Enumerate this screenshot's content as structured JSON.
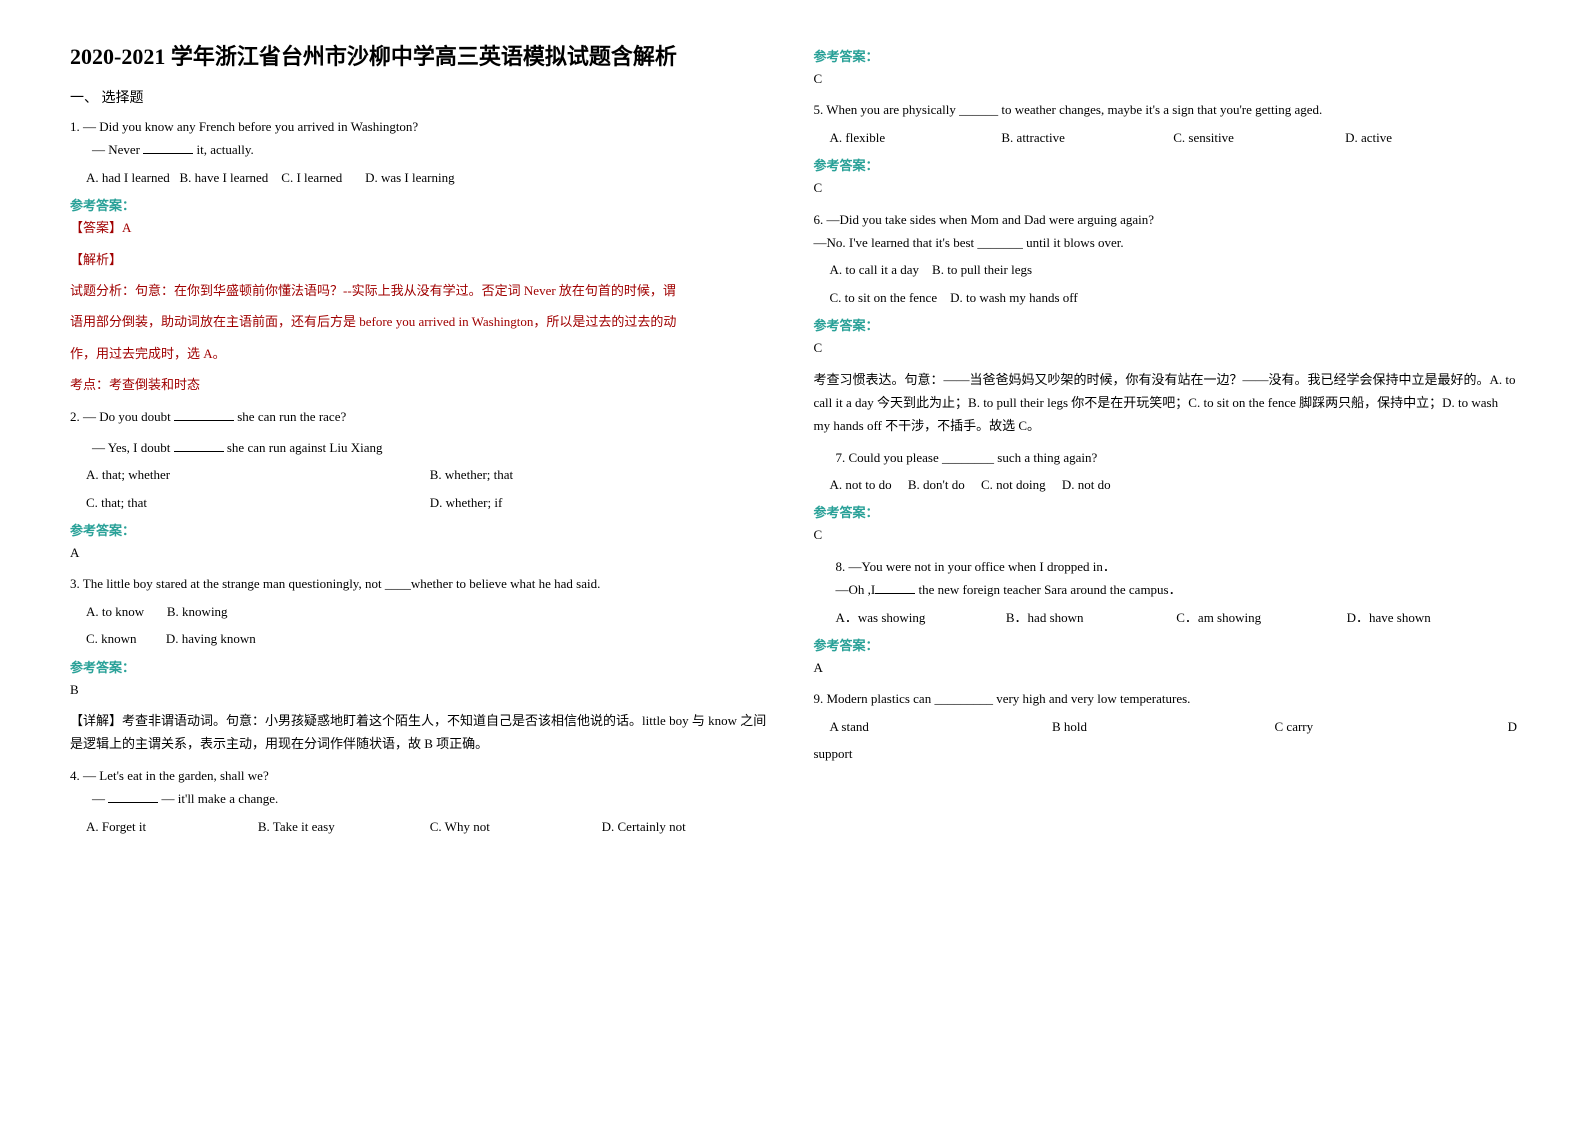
{
  "title": "2020-2021 学年浙江省台州市沙柳中学高三英语模拟试题含解析",
  "section1": "一、 选择题",
  "answer_label": "参考答案：",
  "q1": {
    "stem1": "1. — Did you know any French before you arrived in Washington?",
    "stem2": "— Never ",
    "stem2b": " it, actually.",
    "optA": "A. had I learned",
    "optB": "B. have I learned",
    "optC": "C. I learned",
    "optD": "D. was I learning",
    "ans_tag": "【答案】A",
    "jx_tag": "【解析】",
    "jx1": "试题分析：句意：在你到华盛顿前你懂法语吗？--实际上我从没有学过。否定词 Never 放在句首的时候，谓",
    "jx2": "语用部分倒装，助动词放在主语前面，还有后方是 before you arrived in Washington，所以是过去的过去的动",
    "jx3": "作，用过去完成时，选 A。",
    "kd": "考点：考查倒装和时态"
  },
  "q2": {
    "stem1": "2. — Do you doubt ",
    "stem1b": " she can run the race?",
    "stem2a": "— Yes, I doubt ",
    "stem2b": " she can run against Liu Xiang",
    "optA": "A. that; whether",
    "optB": "B. whether; that",
    "optC": "C. that; that",
    "optD": "D. whether; if",
    "answer": "A"
  },
  "q3": {
    "stem": "3. The little boy stared at the strange man questioningly, not ____whether to believe what he had said.",
    "optA": "A. to know",
    "optB": "B. knowing",
    "optC": "C. known",
    "optD": "D. having known",
    "answer": "B",
    "jx": "【详解】考查非谓语动词。句意：小男孩疑惑地盯着这个陌生人，不知道自己是否该相信他说的话。little boy 与 know 之间是逻辑上的主谓关系，表示主动，用现在分词作伴随状语，故 B 项正确。"
  },
  "q4": {
    "stem1": "4. — Let's eat in the garden, shall we?",
    "stem2a": "— ",
    "stem2b": " — it'll make a change.",
    "optA": "A. Forget it",
    "optB": "B. Take it easy",
    "optC": "C. Why not",
    "optD": "D. Certainly not",
    "answer": "C"
  },
  "q5": {
    "stem": "5. When you are physically ______ to weather changes, maybe it's a sign that you're getting aged.",
    "optA": "A. flexible",
    "optB": "B. attractive",
    "optC": "C. sensitive",
    "optD": "D. active",
    "answer": "C"
  },
  "q6": {
    "stem1": "6. —Did you take sides when Mom and Dad were arguing again?",
    "stem2": "—No. I've learned that it's best _______ until it blows over.",
    "optA": "A. to call it a day",
    "optB": "B. to pull their legs",
    "optC": "C. to sit on the fence",
    "optD": "D. to wash my hands off",
    "answer": "C",
    "jx": "考查习惯表达。句意：——当爸爸妈妈又吵架的时候，你有没有站在一边？——没有。我已经学会保持中立是最好的。A. to call it a day 今天到此为止；B. to pull their legs 你不是在开玩笑吧；C. to sit on the fence 脚踩两只船，保持中立；D. to wash my hands off 不干涉，不插手。故选 C。"
  },
  "q7": {
    "stem": "7. Could you please ________ such a thing again?",
    "optA": "A. not to do",
    "optB": "B. don't do",
    "optC": "C. not doing",
    "optD": "D. not do",
    "answer": "C"
  },
  "q8": {
    "stem1": "8. —You were not in your office when I dropped in．",
    "stem2a": "—Oh ,I",
    "stem2b": " the new foreign teacher Sara around the campus．",
    "optA": "A．was showing",
    "optB": "B．had shown",
    "optC": "C．am showing",
    "optD": "D．have shown",
    "answer": "A"
  },
  "q9": {
    "stem": "9. Modern plastics can _________ very high and very low temperatures.",
    "optA": "A  stand",
    "optB": "B  hold",
    "optC": "C  carry",
    "optD": "D  support"
  }
}
